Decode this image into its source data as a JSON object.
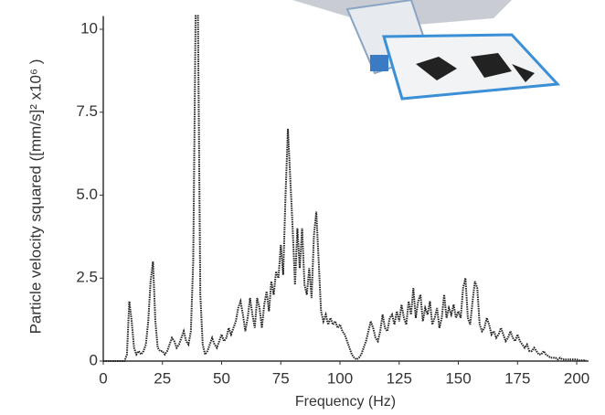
{
  "chart_data": {
    "type": "line",
    "ylabel": "Particle velocity squared ([mm/s]² x10⁶ )",
    "xlabel": "Frequency (Hz)",
    "color": "#222222",
    "xlim": [
      0,
      205
    ],
    "xticks": [
      0,
      25,
      50,
      75,
      100,
      125,
      150,
      175,
      200
    ],
    "ylim": [
      0,
      10.4
    ],
    "yticks": [
      0,
      2.5,
      {
        "value": 5,
        "label": "5.0"
      },
      7.5,
      10
    ],
    "x": [
      0,
      1,
      2,
      3,
      4,
      5,
      6,
      7,
      8,
      9,
      10,
      11,
      12,
      13,
      14,
      15,
      16,
      17,
      18,
      19,
      20,
      21,
      22,
      23,
      24,
      25,
      26,
      27,
      28,
      29,
      30,
      31,
      32,
      33,
      34,
      35,
      36,
      37,
      38,
      39,
      40,
      41,
      42,
      43,
      44,
      45,
      46,
      47,
      48,
      49,
      50,
      51,
      52,
      53,
      54,
      55,
      56,
      57,
      58,
      59,
      60,
      61,
      62,
      63,
      64,
      65,
      66,
      67,
      68,
      69,
      70,
      71,
      72,
      73,
      74,
      75,
      76,
      77,
      78,
      79,
      80,
      81,
      82,
      83,
      84,
      85,
      86,
      87,
      88,
      89,
      90,
      91,
      92,
      93,
      94,
      95,
      96,
      97,
      98,
      99,
      100,
      101,
      102,
      103,
      104,
      105,
      106,
      107,
      108,
      109,
      110,
      111,
      112,
      113,
      114,
      115,
      116,
      117,
      118,
      119,
      120,
      121,
      122,
      123,
      124,
      125,
      126,
      127,
      128,
      129,
      130,
      131,
      132,
      133,
      134,
      135,
      136,
      137,
      138,
      139,
      140,
      141,
      142,
      143,
      144,
      145,
      146,
      147,
      148,
      149,
      150,
      151,
      152,
      153,
      154,
      155,
      156,
      157,
      158,
      159,
      160,
      161,
      162,
      163,
      164,
      165,
      166,
      167,
      168,
      169,
      170,
      171,
      172,
      173,
      174,
      175,
      176,
      177,
      178,
      179,
      180,
      181,
      182,
      183,
      184,
      185,
      186,
      187,
      188,
      189,
      190,
      191,
      192,
      193,
      194,
      195,
      196,
      197,
      198,
      199,
      200,
      201,
      202,
      203,
      204
    ],
    "values": [
      0,
      0,
      0,
      0,
      0,
      0,
      0,
      0,
      0,
      0,
      0.2,
      1.8,
      1.2,
      0.4,
      0.2,
      0.3,
      0.2,
      0.3,
      0.5,
      1.2,
      2.4,
      3.0,
      1.2,
      0.4,
      0.3,
      0.3,
      0.2,
      0.3,
      0.5,
      0.7,
      0.6,
      0.4,
      0.5,
      0.7,
      0.9,
      0.6,
      0.5,
      0.9,
      3.0,
      10.4,
      10.4,
      2.0,
      0.5,
      0.2,
      0.3,
      0.5,
      0.7,
      0.5,
      0.4,
      0.6,
      0.8,
      0.6,
      0.7,
      1.0,
      0.8,
      1.0,
      1.2,
      1.6,
      1.8,
      1.4,
      0.9,
      1.3,
      1.9,
      1.4,
      1.0,
      1.9,
      1.6,
      1.0,
      1.7,
      2.1,
      1.5,
      2.4,
      2.0,
      2.7,
      2.5,
      3.5,
      2.6,
      5.0,
      7.0,
      5.5,
      4.0,
      2.3,
      4.0,
      2.8,
      4.0,
      2.3,
      2.0,
      2.8,
      1.9,
      3.8,
      4.5,
      3.0,
      1.5,
      1.2,
      1.4,
      1.1,
      1.3,
      1.1,
      1.2,
      1.0,
      1.1,
      0.9,
      0.8,
      0.6,
      0.4,
      0.2,
      0.1,
      0.05,
      0.1,
      0.2,
      0.4,
      0.6,
      0.9,
      1.2,
      1.0,
      0.7,
      0.6,
      0.9,
      1.4,
      1.0,
      0.9,
      1.3,
      1.4,
      1.1,
      1.5,
      1.2,
      1.7,
      1.3,
      1.1,
      1.8,
      1.4,
      2.2,
      1.3,
      1.8,
      2.0,
      1.2,
      1.6,
      1.4,
      1.8,
      1.1,
      1.3,
      1.6,
      1.0,
      1.3,
      2.0,
      1.3,
      1.6,
      1.4,
      1.7,
      1.3,
      1.5,
      1.3,
      2.2,
      2.5,
      1.3,
      1.1,
      1.8,
      2.4,
      2.2,
      1.1,
      0.9,
      1.0,
      1.3,
      1.1,
      0.8,
      0.9,
      0.7,
      0.8,
      1.0,
      0.8,
      0.6,
      0.7,
      0.9,
      0.7,
      0.6,
      0.8,
      0.6,
      0.5,
      0.4,
      0.5,
      0.3,
      0.3,
      0.4,
      0.3,
      0.2,
      0.2,
      0.3,
      0.2,
      0.15,
      0.1,
      0.1,
      0.1,
      0.05,
      0.1,
      0.05,
      0.05,
      0.05,
      0.05,
      0.05,
      0.05,
      0.05,
      0.02,
      0.02,
      0.02,
      0.02
    ]
  }
}
